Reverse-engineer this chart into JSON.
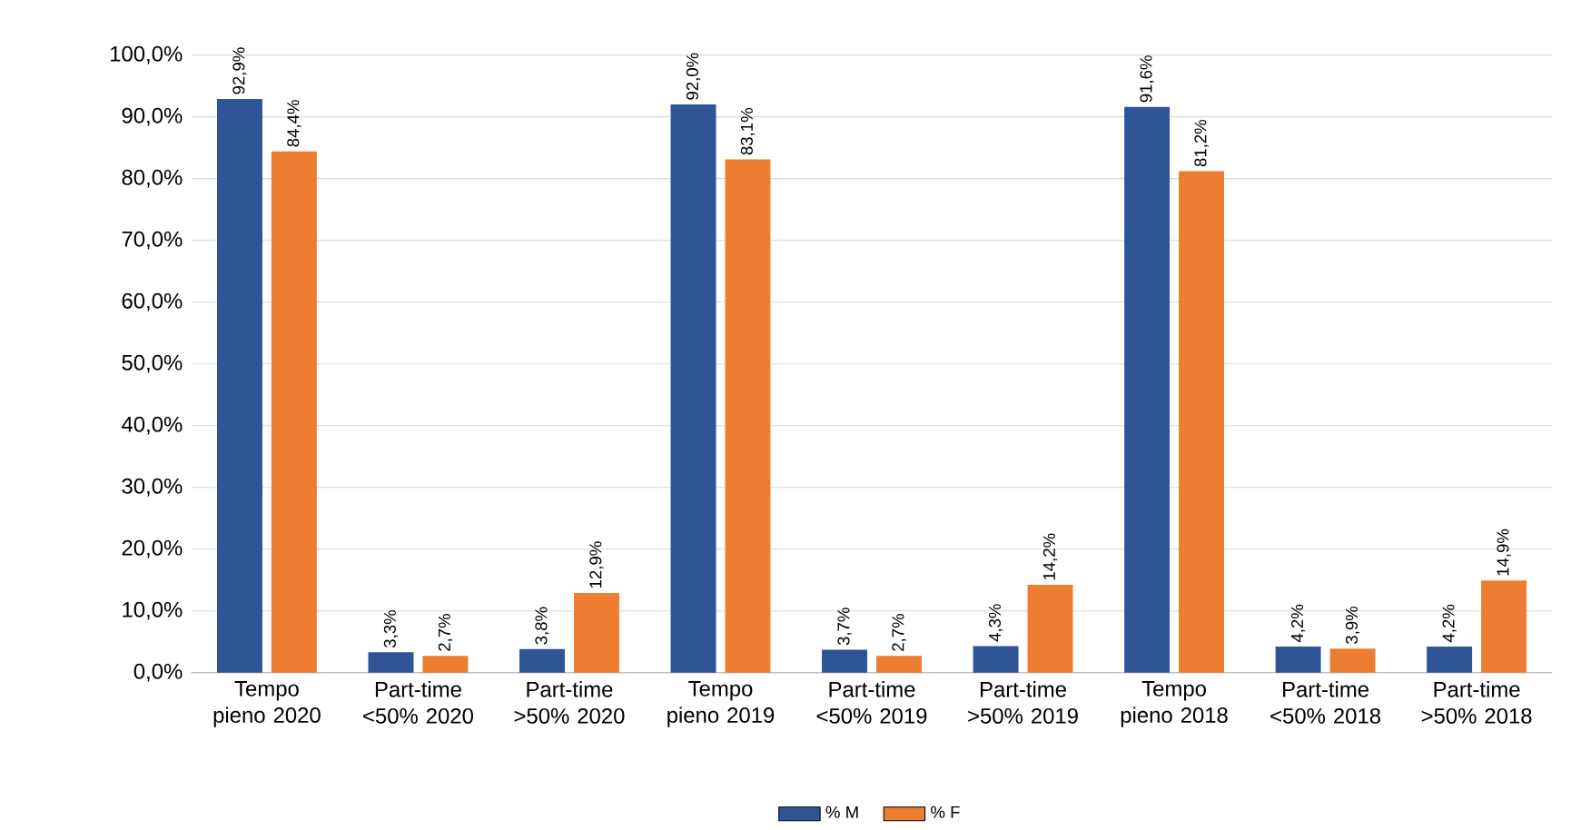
{
  "chart_data": {
    "type": "bar",
    "categories": [
      "Tempo pieno 2020",
      "Part-time <50% 2020",
      "Part-time >50% 2020",
      "Tempo pieno 2019",
      "Part-time <50% 2019",
      "Part-time >50% 2019",
      "Tempo pieno 2018",
      "Part-time <50% 2018",
      "Part-time >50% 2018"
    ],
    "series": [
      {
        "name": "% M",
        "color": "#2f5597",
        "values": [
          92.9,
          3.3,
          3.8,
          92.0,
          3.7,
          4.3,
          91.6,
          4.2,
          4.2
        ],
        "value_labels": [
          "92,9%",
          "3,3%",
          "3,8%",
          "92,0%",
          "3,7%",
          "4,3%",
          "91,6%",
          "4,2%",
          "4,2%"
        ]
      },
      {
        "name": "% F",
        "color": "#ed7d31",
        "values": [
          84.4,
          2.7,
          12.9,
          83.1,
          2.7,
          14.2,
          81.2,
          3.9,
          14.9
        ],
        "value_labels": [
          "84,4%",
          "2,7%",
          "12,9%",
          "83,1%",
          "2,7%",
          "14,2%",
          "81,2%",
          "3,9%",
          "14,9%"
        ]
      }
    ],
    "ylim": [
      0,
      100
    ],
    "yticks": [
      {
        "value": 0,
        "label": "0,0%"
      },
      {
        "value": 10,
        "label": "10,0%"
      },
      {
        "value": 20,
        "label": "20,0%"
      },
      {
        "value": 30,
        "label": "30,0%"
      },
      {
        "value": 40,
        "label": "40,0%"
      },
      {
        "value": 50,
        "label": "50,0%"
      },
      {
        "value": 60,
        "label": "60,0%"
      },
      {
        "value": 70,
        "label": "70,0%"
      },
      {
        "value": 80,
        "label": "80,0%"
      },
      {
        "value": 90,
        "label": "90,0%"
      },
      {
        "value": 100,
        "label": "100,0%"
      }
    ],
    "grid": "y",
    "legend": "bottom"
  }
}
